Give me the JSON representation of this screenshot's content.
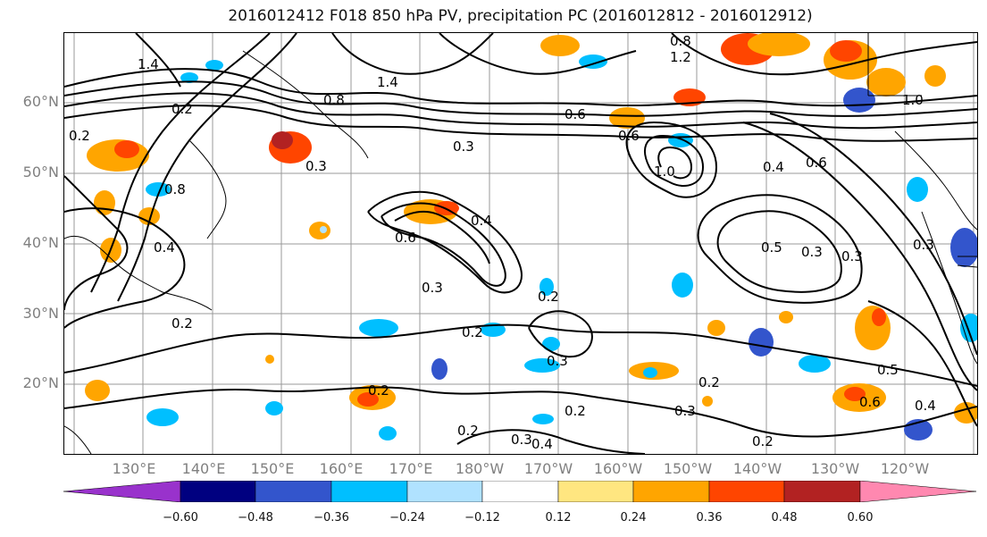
{
  "title": "2016012412 F018 850 hPa PV, precipitation PC (2016012812 - 2016012912)",
  "lat_labels": [
    "60°N",
    "50°N",
    "40°N",
    "30°N",
    "20°N"
  ],
  "lon_labels": [
    "130°E",
    "140°E",
    "150°E",
    "160°E",
    "170°E",
    "180°W",
    "170°W",
    "160°W",
    "150°W",
    "140°W",
    "130°W",
    "120°W"
  ],
  "colorbar": {
    "ticks": [
      "−0.60",
      "−0.48",
      "−0.36",
      "−0.24",
      "−0.12",
      "0.12",
      "0.24",
      "0.36",
      "0.48",
      "0.60"
    ],
    "colors": [
      "#9932cc",
      "#000080",
      "#3355cc",
      "#00bfff",
      "#b0e2ff",
      "#ffffff",
      "#ffe680",
      "#ffa500",
      "#ff4500",
      "#b22222",
      "#ff88b0"
    ]
  },
  "contour_labels": [
    "0.2",
    "0.3",
    "0.4",
    "0.5",
    "0.6",
    "0.8",
    "1.0",
    "1.2",
    "1.4"
  ]
}
